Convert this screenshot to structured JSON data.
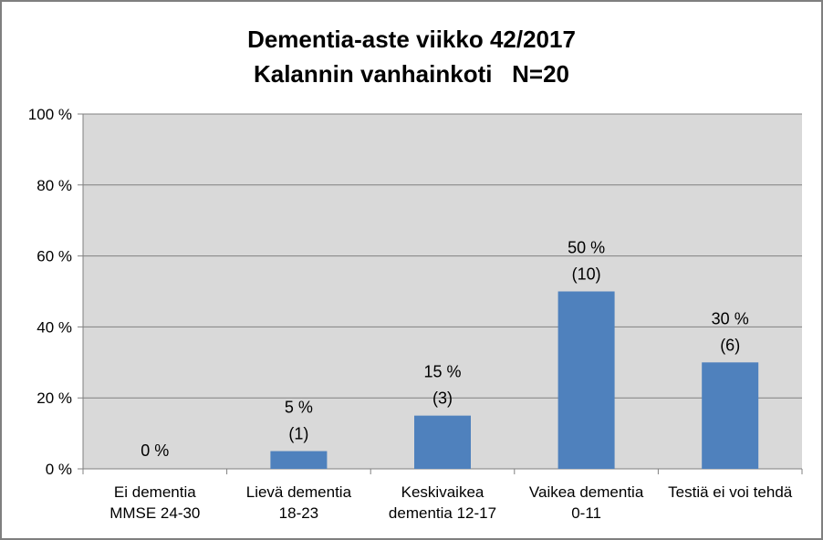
{
  "chart_data": {
    "type": "bar",
    "title": "Dementia-aste viikko 42/2017",
    "subtitle": "Kalannin vanhainkoti   N=20",
    "categories": [
      [
        "Ei dementia",
        "MMSE 24-30"
      ],
      [
        "Lievä dementia",
        "18-23"
      ],
      [
        "Keskivaikea",
        "dementia 12-17"
      ],
      [
        "Vaikea dementia",
        "0-11"
      ],
      [
        "Testiä ei voi tehdä"
      ]
    ],
    "values": [
      0,
      5,
      15,
      50,
      30
    ],
    "value_labels": [
      "0 %",
      "5 %",
      "15 %",
      "50 %",
      "30 %"
    ],
    "count_labels": [
      "",
      "(1)",
      "(3)",
      "(10)",
      "(6)"
    ],
    "ylim": [
      0,
      100
    ],
    "yticks": [
      0,
      20,
      40,
      60,
      80,
      100
    ],
    "ytick_labels": [
      "0 %",
      "20 %",
      "40 %",
      "60 %",
      "80 %",
      "100 %"
    ],
    "xlabel": "",
    "ylabel": "",
    "grid": true,
    "legend": "none",
    "colors": {
      "bar": "#4f81bd",
      "plot_bg": "#d9d9d9",
      "grid": "#808080",
      "axis": "#808080"
    }
  }
}
